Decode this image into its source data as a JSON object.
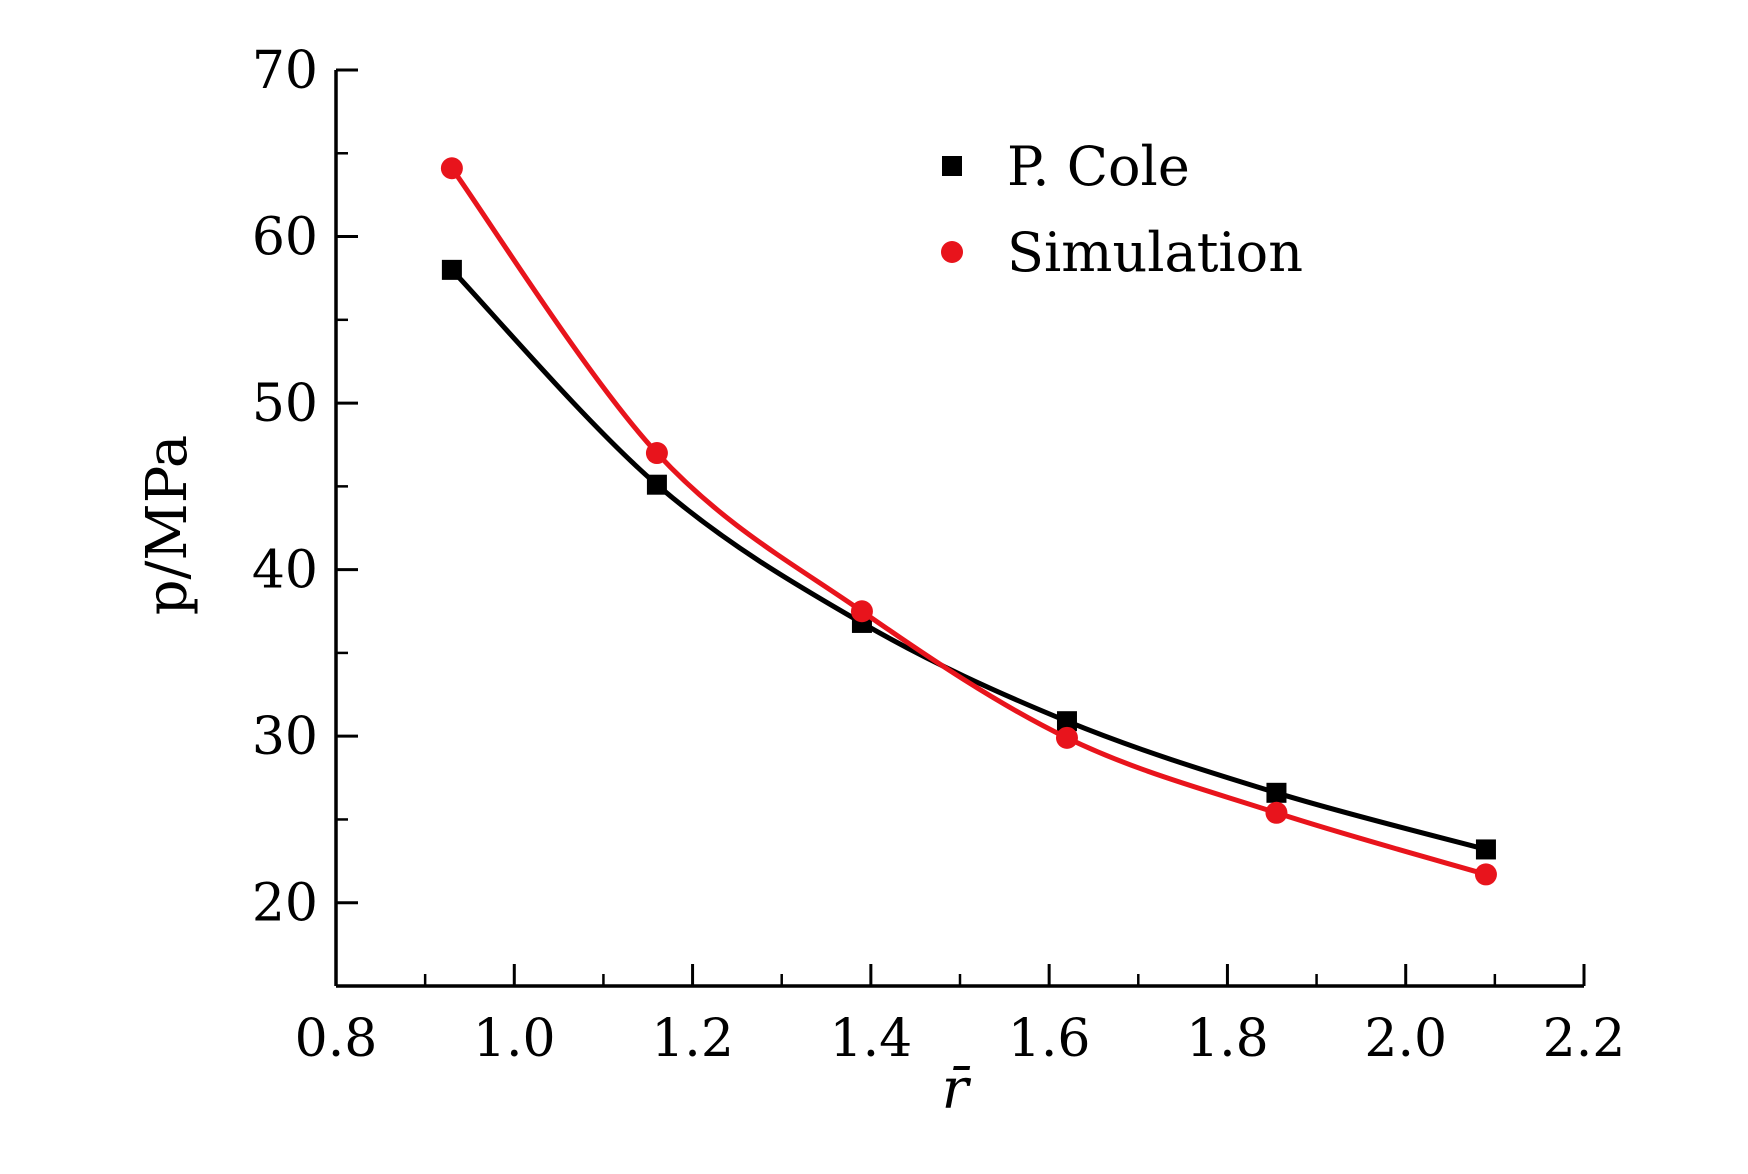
{
  "chart_data": {
    "type": "line",
    "title": "",
    "xlabel": "r̄",
    "ylabel": "p/MPa",
    "xlim": [
      0.8,
      2.2
    ],
    "ylim": [
      15,
      70
    ],
    "xticks": [
      0.8,
      1.0,
      1.2,
      1.4,
      1.6,
      1.8,
      2.0,
      2.2
    ],
    "xtick_labels": [
      "0.8",
      "1.0",
      "1.2",
      "1.4",
      "1.6",
      "1.8",
      "2.0",
      "2.2"
    ],
    "yticks": [
      20,
      30,
      40,
      50,
      60,
      70
    ],
    "ytick_labels": [
      "20",
      "30",
      "40",
      "50",
      "60",
      "70"
    ],
    "grid": false,
    "legend_position": "top-right",
    "series": [
      {
        "name": "P. Cole",
        "marker": "square",
        "color": "#000000",
        "x": [
          0.93,
          1.16,
          1.39,
          1.62,
          1.855,
          2.09
        ],
        "y": [
          58.0,
          45.1,
          36.8,
          30.9,
          26.6,
          23.2
        ]
      },
      {
        "name": "Simulation",
        "marker": "circle",
        "color": "#e8141c",
        "x": [
          0.93,
          1.16,
          1.39,
          1.62,
          1.855,
          2.09
        ],
        "y": [
          64.1,
          47.0,
          37.5,
          29.9,
          25.4,
          21.7
        ]
      }
    ]
  }
}
